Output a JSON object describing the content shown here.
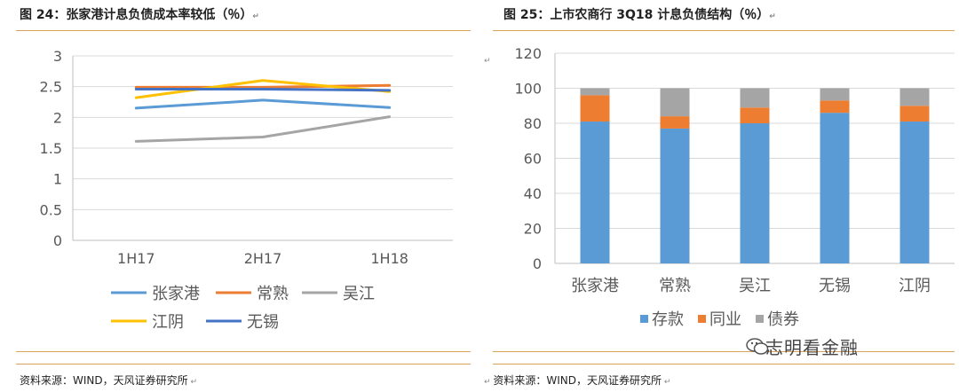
{
  "left": {
    "title": "图 24：张家港计息负债成本率较低（％）",
    "source": "资料来源：WIND，天风证券研究所"
  },
  "right": {
    "title": "图 25：上市农商行 3Q18 计息负债结构（％）",
    "source": "资料来源：WIND，天风证券研究所"
  },
  "watermark": "志明看金融",
  "chart_data": [
    {
      "type": "line",
      "title": "",
      "x": [
        "1H17",
        "2H17",
        "1H18"
      ],
      "ylim": [
        0,
        3
      ],
      "yticks": [
        "0",
        "0.5",
        "1",
        "1.5",
        "2",
        "2.5",
        "3"
      ],
      "grid": true,
      "legend_position": "bottom",
      "series": [
        {
          "name": "张家港",
          "values": [
            2.15,
            2.28,
            2.16
          ],
          "color": "#5b9bd5"
        },
        {
          "name": "常熟",
          "values": [
            2.49,
            2.49,
            2.52
          ],
          "color": "#ed7d31"
        },
        {
          "name": "吴江",
          "values": [
            1.61,
            1.68,
            2.01
          ],
          "color": "#a5a5a5"
        },
        {
          "name": "江阴",
          "values": [
            2.32,
            2.6,
            2.42
          ],
          "color": "#ffc000"
        },
        {
          "name": "无锡",
          "values": [
            2.46,
            2.46,
            2.44
          ],
          "color": "#4472c4"
        }
      ]
    },
    {
      "type": "bar",
      "stacked": true,
      "title": "",
      "categories": [
        "张家港",
        "常熟",
        "吴江",
        "无锡",
        "江阴"
      ],
      "ylim": [
        0,
        120
      ],
      "yticks": [
        "0",
        "20",
        "40",
        "60",
        "80",
        "100",
        "120"
      ],
      "grid": true,
      "legend_position": "bottom",
      "series": [
        {
          "name": "存款",
          "values": [
            81,
            77,
            80,
            86,
            81
          ],
          "color": "#5b9bd5"
        },
        {
          "name": "同业",
          "values": [
            15,
            7,
            9,
            7,
            9
          ],
          "color": "#ed7d31"
        },
        {
          "name": "债券",
          "values": [
            4,
            16,
            11,
            7,
            10
          ],
          "color": "#a5a5a5"
        }
      ]
    }
  ]
}
